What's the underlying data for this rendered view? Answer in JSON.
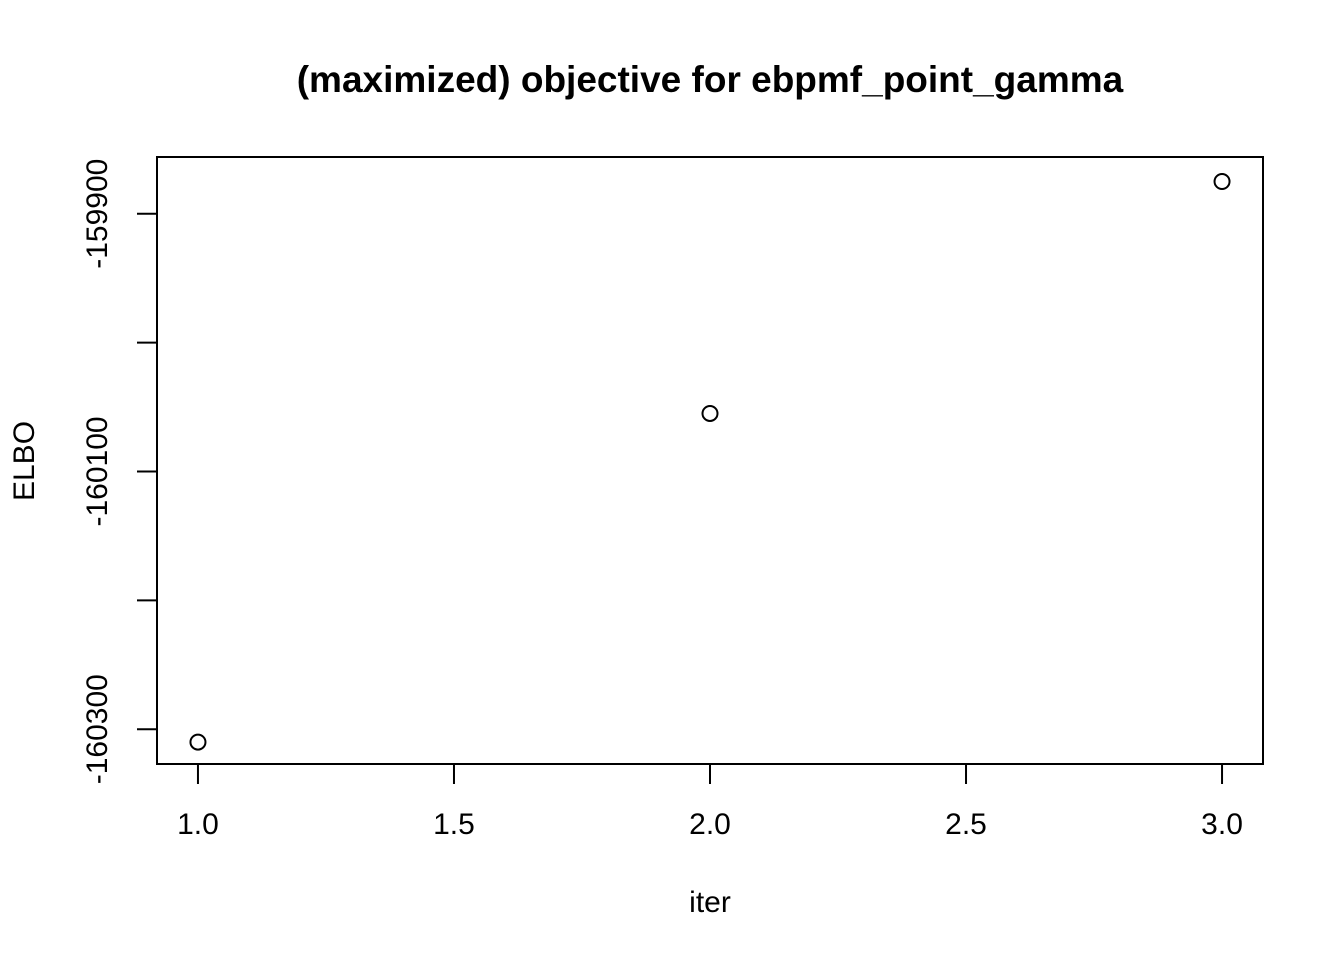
{
  "chart_data": {
    "type": "scatter",
    "title": "(maximized) objective for ebpmf_point_gamma",
    "xlabel": "iter",
    "ylabel": "ELBO",
    "x": [
      1,
      2,
      3
    ],
    "y": [
      -160310,
      -160055,
      -159875
    ],
    "xlim": [
      0.92,
      3.08
    ],
    "ylim": [
      -160327,
      -159856
    ],
    "xticks": [
      1.0,
      1.5,
      2.0,
      2.5,
      3.0
    ],
    "xtick_labels": [
      "1.0",
      "1.5",
      "2.0",
      "2.5",
      "3.0"
    ],
    "yticks": [
      -160300,
      -160200,
      -160100,
      -160000,
      -159900
    ],
    "ytick_labels": [
      "-160300",
      "",
      "-160100",
      "",
      "-159900"
    ],
    "grid": false,
    "marker": "open-circle",
    "colors": {
      "marker": "#000000",
      "axes": "#000000",
      "background": "#ffffff"
    }
  }
}
